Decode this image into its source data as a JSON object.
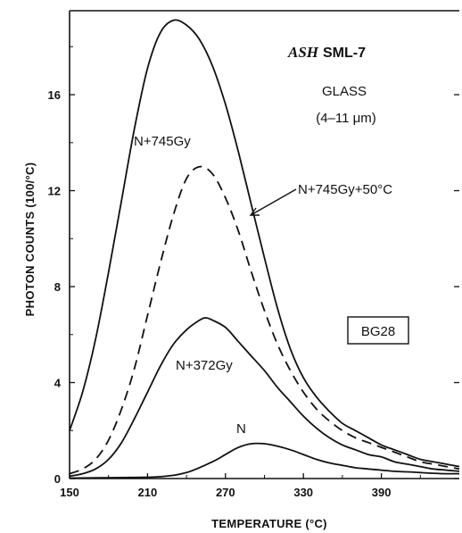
{
  "chart_data": {
    "type": "line",
    "title_sample": "ASH",
    "title_id": "SML-7",
    "phase": "GLASS",
    "grain_size": "(4–11 μm)",
    "filter": "BG28",
    "xlabel": "TEMPERATURE (°C)",
    "ylabel": "PHOTON COUNTS (100/°C)",
    "xlim": [
      150,
      450
    ],
    "ylim": [
      0,
      19.5
    ],
    "x_ticks": [
      150,
      210,
      270,
      330,
      390
    ],
    "y_ticks": [
      0,
      4,
      8,
      12,
      16
    ],
    "series": [
      {
        "name": "N+745Gy",
        "style": "solid",
        "points": [
          [
            150,
            2.0
          ],
          [
            160,
            3.6
          ],
          [
            170,
            5.8
          ],
          [
            180,
            8.6
          ],
          [
            190,
            11.6
          ],
          [
            200,
            14.6
          ],
          [
            210,
            17.1
          ],
          [
            220,
            18.6
          ],
          [
            230,
            19.1
          ],
          [
            240,
            18.9
          ],
          [
            250,
            18.3
          ],
          [
            260,
            17.2
          ],
          [
            270,
            15.6
          ],
          [
            280,
            13.6
          ],
          [
            290,
            11.4
          ],
          [
            300,
            9.2
          ],
          [
            310,
            7.1
          ],
          [
            320,
            5.4
          ],
          [
            330,
            4.2
          ],
          [
            340,
            3.4
          ],
          [
            350,
            2.8
          ],
          [
            360,
            2.3
          ],
          [
            370,
            2.0
          ],
          [
            380,
            1.7
          ],
          [
            390,
            1.4
          ],
          [
            400,
            1.2
          ],
          [
            410,
            1.0
          ],
          [
            420,
            0.8
          ],
          [
            430,
            0.7
          ],
          [
            440,
            0.6
          ],
          [
            450,
            0.5
          ]
        ]
      },
      {
        "name": "N+745Gy+50°C",
        "style": "dashed",
        "points": [
          [
            150,
            0.2
          ],
          [
            160,
            0.4
          ],
          [
            170,
            0.8
          ],
          [
            180,
            1.6
          ],
          [
            190,
            2.9
          ],
          [
            200,
            4.6
          ],
          [
            210,
            6.8
          ],
          [
            220,
            9.0
          ],
          [
            230,
            11.0
          ],
          [
            240,
            12.5
          ],
          [
            250,
            13.0
          ],
          [
            260,
            12.7
          ],
          [
            270,
            11.7
          ],
          [
            280,
            10.3
          ],
          [
            290,
            8.6
          ],
          [
            300,
            7.0
          ],
          [
            310,
            5.6
          ],
          [
            320,
            4.5
          ],
          [
            330,
            3.6
          ],
          [
            340,
            2.9
          ],
          [
            350,
            2.4
          ],
          [
            360,
            2.0
          ],
          [
            370,
            1.7
          ],
          [
            380,
            1.5
          ],
          [
            390,
            1.3
          ],
          [
            400,
            1.1
          ],
          [
            410,
            0.9
          ],
          [
            420,
            0.7
          ],
          [
            430,
            0.6
          ],
          [
            440,
            0.5
          ],
          [
            450,
            0.4
          ]
        ]
      },
      {
        "name": "N+372Gy",
        "style": "solid",
        "points": [
          [
            150,
            0.1
          ],
          [
            160,
            0.2
          ],
          [
            170,
            0.4
          ],
          [
            180,
            0.8
          ],
          [
            190,
            1.5
          ],
          [
            200,
            2.5
          ],
          [
            210,
            3.6
          ],
          [
            220,
            4.7
          ],
          [
            230,
            5.6
          ],
          [
            240,
            6.2
          ],
          [
            250,
            6.6
          ],
          [
            255,
            6.7
          ],
          [
            260,
            6.6
          ],
          [
            270,
            6.3
          ],
          [
            280,
            5.7
          ],
          [
            290,
            5.1
          ],
          [
            300,
            4.5
          ],
          [
            310,
            3.8
          ],
          [
            320,
            3.2
          ],
          [
            330,
            2.6
          ],
          [
            340,
            2.1
          ],
          [
            350,
            1.7
          ],
          [
            360,
            1.4
          ],
          [
            370,
            1.2
          ],
          [
            380,
            1.0
          ],
          [
            390,
            0.9
          ],
          [
            400,
            0.7
          ],
          [
            410,
            0.6
          ],
          [
            420,
            0.5
          ],
          [
            430,
            0.4
          ],
          [
            440,
            0.35
          ],
          [
            450,
            0.3
          ]
        ]
      },
      {
        "name": "N",
        "style": "solid",
        "points": [
          [
            150,
            0.02
          ],
          [
            190,
            0.04
          ],
          [
            220,
            0.08
          ],
          [
            240,
            0.25
          ],
          [
            260,
            0.7
          ],
          [
            270,
            1.0
          ],
          [
            280,
            1.3
          ],
          [
            290,
            1.45
          ],
          [
            300,
            1.45
          ],
          [
            310,
            1.35
          ],
          [
            320,
            1.2
          ],
          [
            330,
            1.0
          ],
          [
            340,
            0.8
          ],
          [
            350,
            0.65
          ],
          [
            360,
            0.55
          ],
          [
            370,
            0.45
          ],
          [
            380,
            0.4
          ],
          [
            390,
            0.35
          ],
          [
            400,
            0.3
          ],
          [
            410,
            0.28
          ],
          [
            420,
            0.25
          ],
          [
            430,
            0.22
          ],
          [
            440,
            0.2
          ],
          [
            450,
            0.2
          ]
        ]
      }
    ],
    "series_labels": {
      "n745": "N+745Gy",
      "n745_50": "N+745Gy+50°C",
      "n372": "N+372Gy",
      "n": "N"
    }
  }
}
